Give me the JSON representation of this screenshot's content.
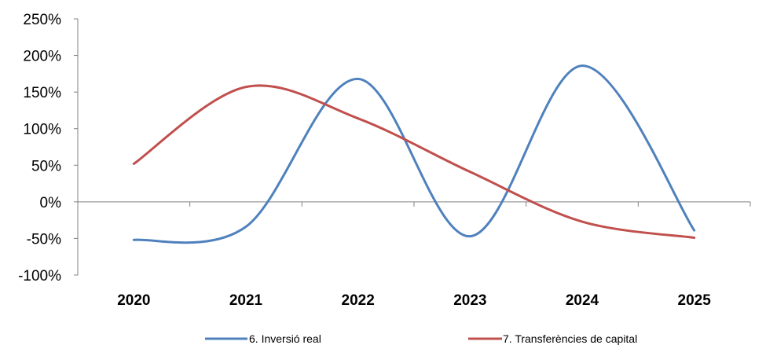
{
  "chart_data": {
    "type": "line",
    "smooth": true,
    "categories": [
      "2020",
      "2021",
      "2022",
      "2023",
      "2024",
      "2025"
    ],
    "series": [
      {
        "name": "6. Inversió real",
        "color": "#4F81BD",
        "values": [
          -52,
          -34,
          168,
          -47,
          186,
          -39
        ]
      },
      {
        "name": "7. Transferències de capital",
        "color": "#C0504D",
        "values": [
          52,
          157,
          114,
          41,
          -27,
          -49
        ]
      }
    ],
    "y_ticks": [
      "250%",
      "200%",
      "150%",
      "100%",
      "50%",
      "0%",
      "-50%",
      "-100%"
    ],
    "ylim": [
      -100,
      250
    ],
    "grid": false,
    "legend": "bottom"
  }
}
